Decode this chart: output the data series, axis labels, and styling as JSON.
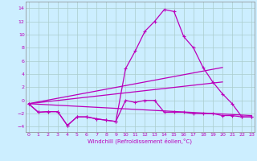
{
  "xlabel": "Windchill (Refroidissement éolien,°C)",
  "bg_color": "#cceeff",
  "grid_color": "#aacccc",
  "line_color": "#bb00bb",
  "x_ticks": [
    0,
    1,
    2,
    3,
    4,
    5,
    6,
    7,
    8,
    9,
    10,
    11,
    12,
    13,
    14,
    15,
    16,
    17,
    18,
    19,
    20,
    21,
    22,
    23
  ],
  "y_ticks": [
    -4,
    -2,
    0,
    2,
    4,
    6,
    8,
    10,
    12,
    14
  ],
  "ylim": [
    -4.8,
    15.0
  ],
  "xlim": [
    -0.3,
    23.3
  ],
  "series1_x": [
    0,
    1,
    2,
    3,
    4,
    5,
    6,
    7,
    8,
    9,
    10,
    11,
    12,
    13,
    14,
    15,
    16,
    17,
    18,
    19,
    20,
    21,
    22,
    23
  ],
  "series1_y": [
    -0.5,
    -1.8,
    -1.7,
    -1.7,
    -3.8,
    -2.5,
    -2.5,
    -2.8,
    -3.0,
    -3.2,
    4.8,
    7.5,
    10.5,
    12.0,
    13.8,
    13.5,
    9.7,
    8.0,
    5.0,
    2.8,
    1.0,
    -0.5,
    -2.5,
    -2.5
  ],
  "series2_x": [
    0,
    1,
    2,
    3,
    4,
    5,
    6,
    7,
    8,
    9,
    10,
    11,
    12,
    13,
    14,
    15,
    16,
    17,
    18,
    19,
    20,
    21,
    22,
    23
  ],
  "series2_y": [
    -0.5,
    -1.8,
    -1.7,
    -1.7,
    -3.8,
    -2.5,
    -2.5,
    -2.8,
    -3.0,
    -3.2,
    0.0,
    -0.3,
    0.0,
    0.0,
    -1.8,
    -1.8,
    -1.8,
    -2.0,
    -2.0,
    -2.0,
    -2.3,
    -2.3,
    -2.5,
    -2.5
  ],
  "series3_x": [
    0,
    20
  ],
  "series3_y": [
    -0.5,
    5.0
  ],
  "series4_x": [
    0,
    20
  ],
  "series4_y": [
    -0.5,
    2.8
  ],
  "series5_x": [
    0,
    23
  ],
  "series5_y": [
    -0.5,
    -2.3
  ]
}
